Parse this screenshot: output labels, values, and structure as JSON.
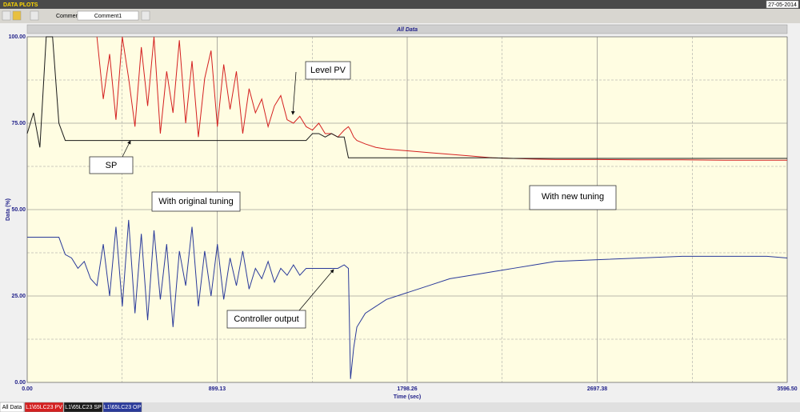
{
  "header": {
    "title": "DATA PLOTS",
    "date": "27-05-2014"
  },
  "toolbar": {
    "comment_label": "Comment",
    "comment_value": "Comment1"
  },
  "tabs": [
    "All Data",
    "L1\\65LC23 PV",
    "L1\\65LC23 SP",
    "L1\\65LC23 OP"
  ],
  "chart_data": {
    "type": "line",
    "title": "All Data",
    "x_label": "Time (sec)",
    "y_label": "Data (%)",
    "x": [
      0,
      30,
      60,
      90,
      120,
      150,
      180,
      210,
      240,
      270,
      300,
      330,
      360,
      390,
      420,
      450,
      480,
      510,
      540,
      570,
      600,
      630,
      660,
      690,
      720,
      750,
      780,
      810,
      840,
      870,
      900,
      930,
      960,
      990,
      1020,
      1050,
      1080,
      1110,
      1140,
      1170,
      1200,
      1230,
      1260,
      1290,
      1320,
      1350,
      1380,
      1410,
      1440,
      1470,
      1500,
      1520,
      1530,
      1545,
      1560,
      1600,
      1650,
      1700,
      1800,
      1900,
      2000,
      2100,
      2200,
      2300,
      2400,
      2500,
      2700,
      2900,
      3100,
      3300,
      3500,
      3596.5
    ],
    "series": [
      {
        "name": "L1\\65LC23 PV",
        "color": "#d42020",
        "values": [
          null,
          null,
          null,
          null,
          null,
          null,
          null,
          null,
          null,
          null,
          null,
          100,
          82,
          95,
          76,
          100,
          88,
          74,
          97,
          80,
          100,
          72,
          90,
          78,
          99,
          75,
          93,
          71,
          88,
          96,
          74,
          92,
          79,
          90,
          72,
          85,
          78,
          82,
          74,
          80,
          83,
          76,
          75,
          77,
          74,
          73,
          75,
          72,
          72,
          71,
          73,
          74,
          73,
          71,
          70,
          69,
          68,
          67.5,
          67,
          66.5,
          66,
          65.5,
          65,
          64.8,
          64.6,
          64.5,
          64.5,
          64.4,
          64.4,
          64.3,
          64.3,
          64.3
        ]
      },
      {
        "name": "L1\\65LC23 SP",
        "color": "#1a1a1a",
        "values": [
          72,
          78,
          68,
          100,
          100,
          75,
          70,
          70,
          70,
          70,
          70,
          70,
          70,
          70,
          70,
          70,
          70,
          70,
          70,
          70,
          70,
          70,
          70,
          70,
          70,
          70,
          70,
          70,
          70,
          70,
          70,
          70,
          70,
          70,
          70,
          70,
          70,
          70,
          70,
          70,
          70,
          70,
          70,
          70,
          70,
          72,
          72,
          71,
          72,
          71,
          71,
          65,
          65,
          65,
          65,
          65,
          65,
          65,
          65,
          65,
          65,
          65,
          65,
          64.8,
          64.8,
          64.8,
          64.8,
          64.8,
          64.8,
          64.8,
          64.8,
          64.8
        ]
      },
      {
        "name": "L1\\65LC23 OP",
        "color": "#2a3a9a",
        "values": [
          42,
          42,
          42,
          42,
          42,
          42,
          37,
          36,
          33,
          35,
          30,
          28,
          40,
          25,
          45,
          22,
          47,
          20,
          43,
          18,
          44,
          24,
          40,
          16,
          38,
          28,
          45,
          22,
          38,
          25,
          40,
          24,
          36,
          28,
          38,
          27,
          33,
          30,
          35,
          29,
          33,
          31,
          34,
          31,
          33,
          33,
          33,
          33,
          33,
          33,
          34,
          33,
          1,
          10,
          16,
          20,
          22,
          24,
          26,
          28,
          30,
          31,
          32,
          33,
          34,
          35,
          35.5,
          36,
          36.5,
          36.5,
          36.5,
          36
        ]
      }
    ],
    "xlim": [
      0,
      3596.5
    ],
    "ylim": [
      0,
      100
    ],
    "xticks": [
      {
        "value": 0,
        "label": "0.00"
      },
      {
        "value": 899.13,
        "label": "899.13"
      },
      {
        "value": 1798.26,
        "label": "1798.26"
      },
      {
        "value": 2697.38,
        "label": "2697.38"
      },
      {
        "value": 3596.5,
        "label": "3596.50"
      }
    ],
    "yticks": [
      {
        "value": 0,
        "label": "0.00"
      },
      {
        "value": 25,
        "label": "25.00"
      },
      {
        "value": 50,
        "label": "50.00"
      },
      {
        "value": 75,
        "label": "75.00"
      },
      {
        "value": 100,
        "label": "100.00"
      }
    ],
    "grid": true,
    "annotations": [
      "Level PV",
      "SP",
      "With original tuning",
      "With new tuning",
      "Controller output"
    ]
  }
}
